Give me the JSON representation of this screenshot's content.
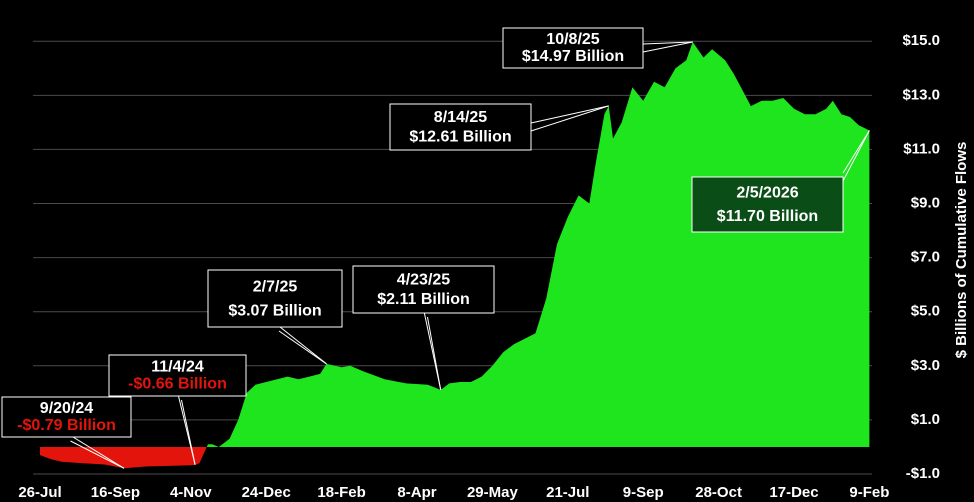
{
  "chart_data": {
    "type": "area",
    "y_axis_label": "$ Billions of Cumulative Flows",
    "color": "#1ee51e",
    "negative_color": "#e3140c",
    "grid": true,
    "x": [
      0,
      5,
      10,
      20,
      30,
      39,
      50,
      60,
      70,
      72,
      74,
      78,
      80,
      83,
      88,
      92,
      96,
      100,
      105,
      110,
      115,
      120,
      125,
      130,
      133,
      140,
      144,
      150,
      160,
      170,
      180,
      186,
      190,
      195,
      200,
      205,
      210,
      215,
      220,
      225,
      230,
      235,
      240,
      245,
      250,
      255,
      258,
      262,
      264,
      266,
      270,
      275,
      280,
      285,
      290,
      295,
      300,
      303,
      308,
      312,
      318,
      322,
      326,
      330,
      335,
      340,
      345,
      350,
      355,
      360,
      365,
      368,
      372,
      376,
      380,
      385
    ],
    "values": [
      -0.3,
      -0.45,
      -0.55,
      -0.6,
      -0.65,
      -0.79,
      -0.72,
      -0.7,
      -0.68,
      -0.66,
      -0.6,
      0.1,
      0.1,
      0.0,
      0.3,
      1.0,
      2.0,
      2.3,
      2.4,
      2.5,
      2.6,
      2.5,
      2.6,
      2.7,
      3.07,
      2.95,
      3.0,
      2.8,
      2.5,
      2.35,
      2.3,
      2.11,
      2.35,
      2.4,
      2.4,
      2.6,
      3.0,
      3.5,
      3.8,
      4.0,
      4.2,
      5.5,
      7.5,
      8.5,
      9.3,
      9.0,
      10.5,
      12.3,
      12.61,
      11.4,
      12.0,
      13.3,
      12.8,
      13.5,
      13.3,
      14.0,
      14.3,
      14.97,
      14.4,
      14.7,
      14.3,
      13.8,
      13.2,
      12.6,
      12.8,
      12.8,
      12.9,
      12.5,
      12.3,
      12.3,
      12.5,
      12.8,
      12.3,
      12.2,
      11.9,
      11.7
    ],
    "xlim": [
      -2,
      386
    ],
    "xticks": [
      {
        "value": 0,
        "label": "26-Jul"
      },
      {
        "value": 35,
        "label": "16-Sep"
      },
      {
        "value": 70,
        "label": "4-Nov"
      },
      {
        "value": 105,
        "label": "24-Dec"
      },
      {
        "value": 140,
        "label": "18-Feb"
      },
      {
        "value": 175,
        "label": "8-Apr"
      },
      {
        "value": 210,
        "label": "29-May"
      },
      {
        "value": 245,
        "label": "21-Jul"
      },
      {
        "value": 280,
        "label": "9-Sep"
      },
      {
        "value": 315,
        "label": "28-Oct"
      },
      {
        "value": 350,
        "label": "17-Dec"
      },
      {
        "value": 385,
        "label": "9-Feb"
      }
    ],
    "ylim": [
      -1,
      15.6
    ],
    "yticks": [
      {
        "value": -1,
        "label": "-$1.0"
      },
      {
        "value": 1,
        "label": "$1.0"
      },
      {
        "value": 3,
        "label": "$3.0"
      },
      {
        "value": 5,
        "label": "$5.0"
      },
      {
        "value": 7,
        "label": "$7.0"
      },
      {
        "value": 9,
        "label": "$9.0"
      },
      {
        "value": 11,
        "label": "$11.0"
      },
      {
        "value": 13,
        "label": "$13.0"
      },
      {
        "value": 15,
        "label": "$15.0"
      }
    ],
    "annotations": [
      {
        "date": "9/20/24",
        "label": "-$0.79 Billion",
        "value": -0.79,
        "x": 39
      },
      {
        "date": "11/4/24",
        "label": "-$0.66 Billion",
        "value": -0.66,
        "x": 72
      },
      {
        "date": "2/7/25",
        "label": "$3.07 Billion",
        "value": 3.07,
        "x": 133
      },
      {
        "date": "4/23/25",
        "label": "$2.11 Billion",
        "value": 2.11,
        "x": 186
      },
      {
        "date": "8/14/25",
        "label": "$12.61 Billion",
        "value": 12.61,
        "x": 264
      },
      {
        "date": "10/8/25",
        "label": "$14.97 Billion",
        "value": 14.97,
        "x": 303
      },
      {
        "date": "2/5/2026",
        "label": "$11.70 Billion",
        "value": 11.7,
        "x": 385,
        "highlight": true
      }
    ]
  }
}
